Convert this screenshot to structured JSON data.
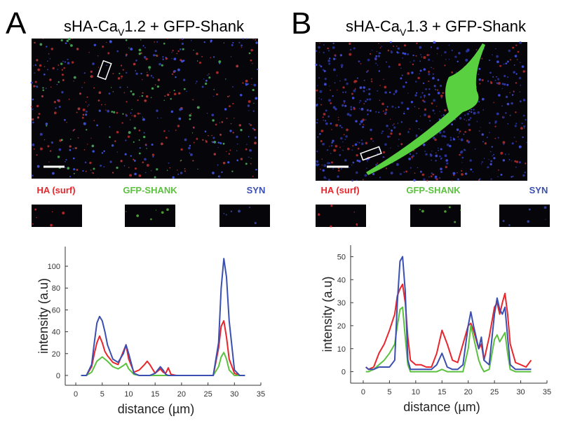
{
  "panels": [
    {
      "letter": "A",
      "title": {
        "prefix": "sHA-Ca",
        "subscript": "V",
        "suffix": "1.2 + GFP-Shank"
      }
    },
    {
      "letter": "B",
      "title": {
        "prefix": "sHA-Ca",
        "subscript": "V",
        "suffix": "1.3 + GFP-Shank"
      }
    }
  ],
  "chart_data": [
    {
      "type": "line",
      "x_label": "distance (µm)",
      "y_label": "intensity (a.u)",
      "x": [
        1,
        2,
        3,
        3.5,
        4,
        4.5,
        5,
        5.5,
        6,
        7,
        8,
        9,
        9.5,
        10,
        11,
        12,
        13,
        13.5,
        14,
        15,
        16,
        16.5,
        17,
        17.5,
        18,
        19,
        20,
        22,
        24,
        26,
        27,
        27.5,
        28,
        28.5,
        29,
        30,
        31,
        32
      ],
      "series": [
        {
          "name": "HA (surf)",
          "color": "#e8262b",
          "values": [
            0,
            0,
            8,
            20,
            30,
            36,
            30,
            22,
            18,
            12,
            10,
            22,
            28,
            15,
            3,
            5,
            10,
            13,
            10,
            2,
            6,
            3,
            2,
            7,
            1,
            0,
            0,
            0,
            0,
            0,
            25,
            45,
            50,
            35,
            15,
            2,
            0,
            0
          ]
        },
        {
          "name": "GFP-SHANK",
          "color": "#5cc13f",
          "values": [
            0,
            0,
            3,
            8,
            13,
            15,
            17,
            15,
            13,
            8,
            6,
            9,
            11,
            6,
            1,
            0,
            0,
            0,
            0,
            0,
            0,
            0,
            0,
            0,
            0,
            0,
            0,
            0,
            0,
            0,
            8,
            17,
            21,
            15,
            5,
            0,
            0,
            0
          ]
        },
        {
          "name": "SYN",
          "color": "#3b4fb0",
          "values": [
            0,
            0,
            10,
            30,
            48,
            54,
            50,
            40,
            28,
            15,
            12,
            20,
            28,
            20,
            2,
            0,
            0,
            0,
            0,
            2,
            8,
            5,
            1,
            0,
            0,
            0,
            0,
            0,
            0,
            0,
            30,
            80,
            107,
            90,
            50,
            5,
            0,
            0
          ]
        }
      ],
      "xlim": [
        -2,
        35
      ],
      "xticks": [
        0,
        5,
        10,
        15,
        20,
        25,
        30,
        35
      ],
      "ylim": [
        -9,
        118
      ],
      "yticks": [
        0,
        20,
        40,
        60,
        80,
        100
      ]
    },
    {
      "type": "line",
      "x_label": "distance (µm)",
      "y_label": "intensity (a.u)",
      "x": [
        0.5,
        1,
        2,
        3,
        4,
        5,
        6,
        6.5,
        7,
        7.5,
        8,
        8.5,
        9,
        10,
        11,
        12,
        13,
        14,
        15,
        16,
        17,
        18,
        19,
        20,
        20.5,
        21,
        22,
        22.5,
        23,
        24,
        25,
        25.5,
        26,
        26.5,
        27,
        27.5,
        28,
        29,
        30,
        31,
        32
      ],
      "series": [
        {
          "name": "HA (surf)",
          "color": "#e8262b",
          "values": [
            2,
            1,
            2,
            8,
            12,
            18,
            25,
            33,
            36,
            38,
            30,
            15,
            5,
            3,
            3,
            2,
            2,
            8,
            18,
            12,
            5,
            4,
            12,
            20,
            21,
            18,
            10,
            12,
            5,
            15,
            28,
            30,
            25,
            30,
            34,
            25,
            12,
            4,
            3,
            2,
            5
          ]
        },
        {
          "name": "GFP-SHANK",
          "color": "#5cc13f",
          "values": [
            0,
            0,
            1,
            3,
            5,
            8,
            12,
            20,
            27,
            28,
            15,
            3,
            0,
            0,
            0,
            0,
            0,
            0,
            1,
            0,
            0,
            0,
            0,
            10,
            20,
            15,
            5,
            2,
            0,
            1,
            14,
            16,
            13,
            15,
            17,
            8,
            1,
            0,
            0,
            0,
            0
          ]
        },
        {
          "name": "SYN",
          "color": "#3b4fb0",
          "values": [
            2,
            1,
            1,
            2,
            2,
            2,
            5,
            30,
            48,
            50,
            35,
            5,
            1,
            1,
            1,
            1,
            1,
            3,
            8,
            2,
            1,
            1,
            3,
            20,
            26,
            20,
            10,
            15,
            5,
            3,
            25,
            32,
            27,
            25,
            28,
            15,
            3,
            1,
            1,
            1,
            1
          ]
        }
      ],
      "xlim": [
        -2.4,
        35
      ],
      "xticks": [
        0,
        5,
        10,
        15,
        20,
        25,
        30,
        35
      ],
      "ylim": [
        -5,
        55
      ],
      "yticks": [
        0,
        10,
        20,
        30,
        40,
        50
      ]
    }
  ]
}
